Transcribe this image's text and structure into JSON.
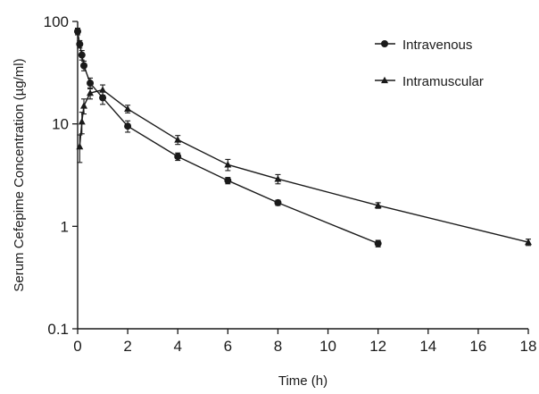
{
  "chart_data": {
    "type": "line",
    "title": "",
    "xlabel": "Time (h)",
    "ylabel": "Serum Cefepime Concentration (µg/ml)",
    "xlim": [
      0,
      18
    ],
    "ylim": [
      0.1,
      100
    ],
    "yscale": "log",
    "grid": false,
    "legend_position": "top-right",
    "x_ticks": [
      "0",
      "2",
      "4",
      "6",
      "8",
      "10",
      "12",
      "14",
      "16",
      "18"
    ],
    "y_ticks": [
      "0.1",
      "1",
      "10",
      "100"
    ],
    "series": [
      {
        "name": "Intravenous",
        "marker": "circle",
        "color": "#1a1a1a",
        "points": [
          {
            "x": 0,
            "y": 80,
            "err": 6
          },
          {
            "x": 0.083,
            "y": 60,
            "err": 5
          },
          {
            "x": 0.17,
            "y": 47,
            "err": 5
          },
          {
            "x": 0.25,
            "y": 37,
            "err": 4
          },
          {
            "x": 0.5,
            "y": 25,
            "err": 3
          },
          {
            "x": 1,
            "y": 18,
            "err": 2.5
          },
          {
            "x": 2,
            "y": 9.5,
            "err": 1.2
          },
          {
            "x": 4,
            "y": 4.8,
            "err": 0.4
          },
          {
            "x": 6,
            "y": 2.8,
            "err": 0.2
          },
          {
            "x": 8,
            "y": 1.7,
            "err": 0.1
          },
          {
            "x": 12,
            "y": 0.68,
            "err": 0.05
          }
        ]
      },
      {
        "name": "Intramuscular",
        "marker": "triangle",
        "color": "#1a1a1a",
        "points": [
          {
            "x": 0.083,
            "y": 6,
            "err": 1.8
          },
          {
            "x": 0.17,
            "y": 10.5,
            "err": 2.5
          },
          {
            "x": 0.25,
            "y": 15,
            "err": 2.5
          },
          {
            "x": 0.5,
            "y": 20,
            "err": 2.5
          },
          {
            "x": 1,
            "y": 21.5,
            "err": 2.5
          },
          {
            "x": 2,
            "y": 14,
            "err": 1.2
          },
          {
            "x": 4,
            "y": 7,
            "err": 0.7
          },
          {
            "x": 6,
            "y": 4,
            "err": 0.5
          },
          {
            "x": 8,
            "y": 2.9,
            "err": 0.3
          },
          {
            "x": 12,
            "y": 1.6,
            "err": 0.1
          },
          {
            "x": 18,
            "y": 0.7,
            "err": 0.05
          }
        ]
      }
    ]
  }
}
